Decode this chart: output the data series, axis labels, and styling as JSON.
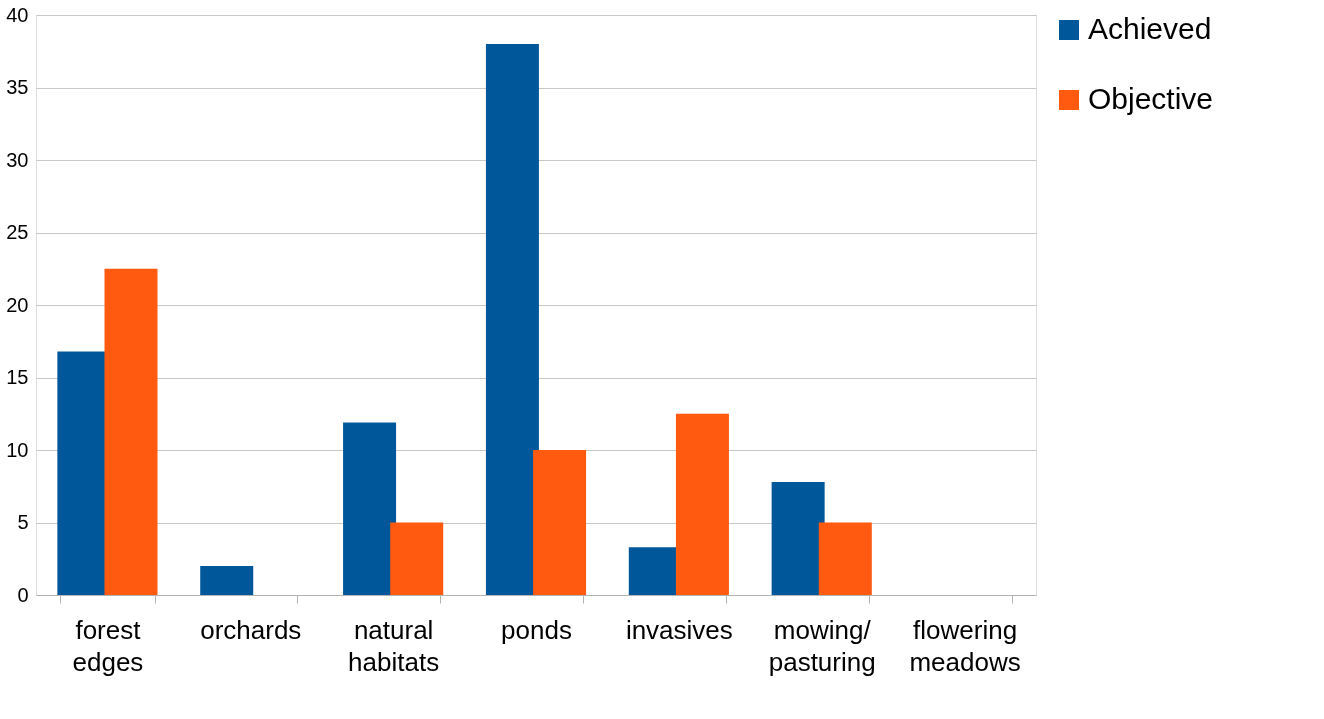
{
  "chart_data": {
    "type": "bar",
    "categories": [
      "forest\nedges",
      "orchards",
      "natural\nhabitats",
      "ponds",
      "invasives",
      "mowing/\npasturing",
      "flowering\nmeadows"
    ],
    "series": [
      {
        "name": "Achieved",
        "color": "#00589a",
        "values": [
          16.8,
          2,
          11.9,
          38,
          3.3,
          7.8,
          0
        ]
      },
      {
        "name": "Objective",
        "color": "#ff5a0f",
        "values": [
          22.5,
          0,
          5,
          10,
          12.5,
          5,
          0
        ]
      }
    ],
    "ylim": [
      0,
      40
    ],
    "yticks": [
      0,
      5,
      10,
      15,
      20,
      25,
      30,
      35,
      40
    ],
    "grid": "y",
    "legend": "right"
  }
}
